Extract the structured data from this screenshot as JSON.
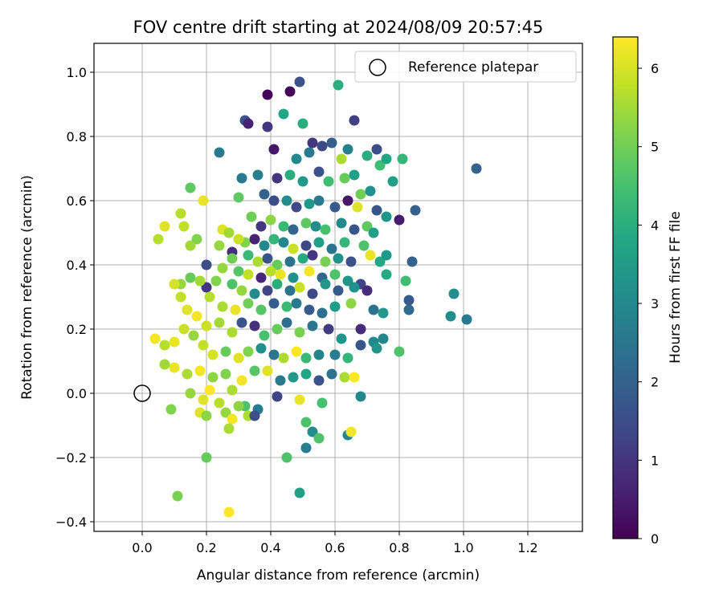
{
  "chart_data": {
    "type": "scatter",
    "title": "FOV centre drift starting at 2024/08/09 20:57:45",
    "xlabel": "Angular distance from reference (arcmin)",
    "ylabel": "Rotation from reference (arcmin)",
    "xlim": [
      -0.15,
      1.37
    ],
    "ylim": [
      -0.43,
      1.09
    ],
    "xticks": [
      "0.0",
      "0.2",
      "0.4",
      "0.6",
      "0.8",
      "1.0",
      "1.2"
    ],
    "xtick_values": [
      0.0,
      0.2,
      0.4,
      0.6,
      0.8,
      1.0,
      1.2
    ],
    "yticks": [
      "−0.4",
      "−0.2",
      "0.0",
      "0.2",
      "0.4",
      "0.6",
      "0.8",
      "1.0"
    ],
    "ytick_values": [
      -0.4,
      -0.2,
      0.0,
      0.2,
      0.4,
      0.6,
      0.8,
      1.0
    ],
    "grid": true,
    "legend": {
      "label": "Reference platepar",
      "placement": "top-right"
    },
    "reference_point": {
      "x": 0.0,
      "y": 0.0
    },
    "colorbar": {
      "label": "Hours from first FF file",
      "colormap": "viridis",
      "range": [
        0,
        6.4
      ],
      "ticks": [
        "0",
        "1",
        "2",
        "3",
        "4",
        "5",
        "6"
      ],
      "tick_values": [
        0,
        1,
        2,
        3,
        4,
        5,
        6
      ]
    },
    "points": [
      [
        0.39,
        0.93,
        0.1
      ],
      [
        0.46,
        0.94,
        0.1
      ],
      [
        0.49,
        0.97,
        1.6
      ],
      [
        0.61,
        0.96,
        4.0
      ],
      [
        0.44,
        0.87,
        3.8
      ],
      [
        0.5,
        0.84,
        4.0
      ],
      [
        0.32,
        0.85,
        1.6
      ],
      [
        0.33,
        0.84,
        0.6
      ],
      [
        0.39,
        0.83,
        1.0
      ],
      [
        0.66,
        0.85,
        1.2
      ],
      [
        0.24,
        0.75,
        2.6
      ],
      [
        0.41,
        0.76,
        0.4
      ],
      [
        0.48,
        0.73,
        3.0
      ],
      [
        0.52,
        0.75,
        2.6
      ],
      [
        0.53,
        0.78,
        1.0
      ],
      [
        0.56,
        0.77,
        1.4
      ],
      [
        0.59,
        0.78,
        1.9
      ],
      [
        0.64,
        0.76,
        2.8
      ],
      [
        0.62,
        0.73,
        5.6
      ],
      [
        0.7,
        0.74,
        4.0
      ],
      [
        0.73,
        0.76,
        1.5
      ],
      [
        0.74,
        0.71,
        4.4
      ],
      [
        0.76,
        0.73,
        3.8
      ],
      [
        0.81,
        0.73,
        4.2
      ],
      [
        0.78,
        0.66,
        3.6
      ],
      [
        0.85,
        0.57,
        2.0
      ],
      [
        1.04,
        0.7,
        2.0
      ],
      [
        0.31,
        0.67,
        2.6
      ],
      [
        0.36,
        0.68,
        2.7
      ],
      [
        0.42,
        0.67,
        1.0
      ],
      [
        0.46,
        0.68,
        4.0
      ],
      [
        0.5,
        0.66,
        3.4
      ],
      [
        0.55,
        0.69,
        1.6
      ],
      [
        0.58,
        0.66,
        4.4
      ],
      [
        0.63,
        0.67,
        4.9
      ],
      [
        0.66,
        0.68,
        3.6
      ],
      [
        0.68,
        0.62,
        5.0
      ],
      [
        0.71,
        0.63,
        3.2
      ],
      [
        0.38,
        0.62,
        2.0
      ],
      [
        0.41,
        0.6,
        1.5
      ],
      [
        0.45,
        0.6,
        3.1
      ],
      [
        0.48,
        0.58,
        1.4
      ],
      [
        0.52,
        0.59,
        3.4
      ],
      [
        0.55,
        0.6,
        2.6
      ],
      [
        0.6,
        0.58,
        1.8
      ],
      [
        0.64,
        0.6,
        0.4
      ],
      [
        0.67,
        0.58,
        6.1
      ],
      [
        0.73,
        0.57,
        1.7
      ],
      [
        0.76,
        0.55,
        3.3
      ],
      [
        0.8,
        0.54,
        0.5
      ],
      [
        0.34,
        0.55,
        5.0
      ],
      [
        0.37,
        0.52,
        1.0
      ],
      [
        0.4,
        0.54,
        5.3
      ],
      [
        0.44,
        0.52,
        4.3
      ],
      [
        0.47,
        0.51,
        2.1
      ],
      [
        0.51,
        0.53,
        4.8
      ],
      [
        0.54,
        0.52,
        3.1
      ],
      [
        0.57,
        0.51,
        4.5
      ],
      [
        0.62,
        0.53,
        3.0
      ],
      [
        0.66,
        0.51,
        1.7
      ],
      [
        0.7,
        0.52,
        4.8
      ],
      [
        0.72,
        0.5,
        3.6
      ],
      [
        0.32,
        0.47,
        5.2
      ],
      [
        0.35,
        0.48,
        0.6
      ],
      [
        0.38,
        0.46,
        3.0
      ],
      [
        0.41,
        0.48,
        4.2
      ],
      [
        0.44,
        0.47,
        2.9
      ],
      [
        0.47,
        0.45,
        5.9
      ],
      [
        0.51,
        0.46,
        1.4
      ],
      [
        0.55,
        0.47,
        3.6
      ],
      [
        0.59,
        0.45,
        2.5
      ],
      [
        0.63,
        0.47,
        4.2
      ],
      [
        0.69,
        0.46,
        4.6
      ],
      [
        0.28,
        0.44,
        0.8
      ],
      [
        0.33,
        0.43,
        4.3
      ],
      [
        0.36,
        0.41,
        5.6
      ],
      [
        0.39,
        0.42,
        1.7
      ],
      [
        0.42,
        0.4,
        4.9
      ],
      [
        0.46,
        0.41,
        2.4
      ],
      [
        0.5,
        0.42,
        3.9
      ],
      [
        0.53,
        0.43,
        1.0
      ],
      [
        0.57,
        0.41,
        5.1
      ],
      [
        0.61,
        0.42,
        3.2
      ],
      [
        0.65,
        0.41,
        1.6
      ],
      [
        0.71,
        0.43,
        6.2
      ],
      [
        0.74,
        0.41,
        3.8
      ],
      [
        0.76,
        0.43,
        3.4
      ],
      [
        0.84,
        0.41,
        2.0
      ],
      [
        0.2,
        0.4,
        1.5
      ],
      [
        0.25,
        0.39,
        5.4
      ],
      [
        0.3,
        0.38,
        4.7
      ],
      [
        0.33,
        0.37,
        5.8
      ],
      [
        0.37,
        0.36,
        0.7
      ],
      [
        0.4,
        0.38,
        5.7
      ],
      [
        0.43,
        0.37,
        6.2
      ],
      [
        0.47,
        0.36,
        3.2
      ],
      [
        0.52,
        0.38,
        6.3
      ],
      [
        0.56,
        0.36,
        2.1
      ],
      [
        0.6,
        0.37,
        4.6
      ],
      [
        0.64,
        0.35,
        3.3
      ],
      [
        0.68,
        0.34,
        1.3
      ],
      [
        0.7,
        0.32,
        0.8
      ],
      [
        0.76,
        0.37,
        3.9
      ],
      [
        0.82,
        0.35,
        4.4
      ],
      [
        0.2,
        0.33,
        1.0
      ],
      [
        0.23,
        0.35,
        5.2
      ],
      [
        0.28,
        0.34,
        4.6
      ],
      [
        0.31,
        0.32,
        5.4
      ],
      [
        0.35,
        0.31,
        3.0
      ],
      [
        0.39,
        0.32,
        1.3
      ],
      [
        0.42,
        0.34,
        4.0
      ],
      [
        0.46,
        0.32,
        2.4
      ],
      [
        0.49,
        0.33,
        5.9
      ],
      [
        0.53,
        0.31,
        1.4
      ],
      [
        0.57,
        0.34,
        3.4
      ],
      [
        0.61,
        0.32,
        1.8
      ],
      [
        0.66,
        0.33,
        3.2
      ],
      [
        0.97,
        0.31,
        3.1
      ],
      [
        0.12,
        0.34,
        5.4
      ],
      [
        0.15,
        0.36,
        4.9
      ],
      [
        0.18,
        0.35,
        5.5
      ],
      [
        0.21,
        0.3,
        5.7
      ],
      [
        0.25,
        0.27,
        5.6
      ],
      [
        0.29,
        0.26,
        6.2
      ],
      [
        0.33,
        0.28,
        5.0
      ],
      [
        0.37,
        0.26,
        4.7
      ],
      [
        0.41,
        0.28,
        1.9
      ],
      [
        0.45,
        0.27,
        4.3
      ],
      [
        0.48,
        0.28,
        2.6
      ],
      [
        0.52,
        0.26,
        1.8
      ],
      [
        0.56,
        0.25,
        2.3
      ],
      [
        0.6,
        0.27,
        3.5
      ],
      [
        0.65,
        0.28,
        5.3
      ],
      [
        0.72,
        0.26,
        2.4
      ],
      [
        0.75,
        0.25,
        3.4
      ],
      [
        0.83,
        0.26,
        2.2
      ],
      [
        0.83,
        0.29,
        1.8
      ],
      [
        0.96,
        0.24,
        3.1
      ],
      [
        1.01,
        0.23,
        2.6
      ],
      [
        0.05,
        0.48,
        5.7
      ],
      [
        0.07,
        0.52,
        6.1
      ],
      [
        0.1,
        0.34,
        6.0
      ],
      [
        0.12,
        0.3,
        5.8
      ],
      [
        0.14,
        0.26,
        6.1
      ],
      [
        0.17,
        0.24,
        6.3
      ],
      [
        0.2,
        0.21,
        5.9
      ],
      [
        0.24,
        0.22,
        5.5
      ],
      [
        0.28,
        0.19,
        5.6
      ],
      [
        0.31,
        0.22,
        1.6
      ],
      [
        0.35,
        0.21,
        0.9
      ],
      [
        0.38,
        0.18,
        4.5
      ],
      [
        0.42,
        0.2,
        4.9
      ],
      [
        0.45,
        0.22,
        2.3
      ],
      [
        0.49,
        0.19,
        5.1
      ],
      [
        0.53,
        0.21,
        2.5
      ],
      [
        0.58,
        0.2,
        1.1
      ],
      [
        0.62,
        0.17,
        3.3
      ],
      [
        0.68,
        0.2,
        0.8
      ],
      [
        0.72,
        0.16,
        3.0
      ],
      [
        0.75,
        0.17,
        2.9
      ],
      [
        0.04,
        0.17,
        6.3
      ],
      [
        0.07,
        0.15,
        5.7
      ],
      [
        0.1,
        0.16,
        6.2
      ],
      [
        0.13,
        0.2,
        5.9
      ],
      [
        0.16,
        0.18,
        5.4
      ],
      [
        0.19,
        0.15,
        5.8
      ],
      [
        0.22,
        0.12,
        6.0
      ],
      [
        0.26,
        0.13,
        4.9
      ],
      [
        0.3,
        0.11,
        6.1
      ],
      [
        0.33,
        0.13,
        5.2
      ],
      [
        0.37,
        0.14,
        3.2
      ],
      [
        0.41,
        0.12,
        2.5
      ],
      [
        0.44,
        0.11,
        5.6
      ],
      [
        0.48,
        0.13,
        6.4
      ],
      [
        0.51,
        0.11,
        4.3
      ],
      [
        0.55,
        0.12,
        2.9
      ],
      [
        0.6,
        0.12,
        2.7
      ],
      [
        0.64,
        0.11,
        4.2
      ],
      [
        0.68,
        0.15,
        1.7
      ],
      [
        0.73,
        0.14,
        3.3
      ],
      [
        0.8,
        0.13,
        4.6
      ],
      [
        0.07,
        0.09,
        5.5
      ],
      [
        0.1,
        0.08,
        6.2
      ],
      [
        0.14,
        0.06,
        5.6
      ],
      [
        0.18,
        0.07,
        6.3
      ],
      [
        0.22,
        0.05,
        5.3
      ],
      [
        0.26,
        0.06,
        5.2
      ],
      [
        0.31,
        0.04,
        6.3
      ],
      [
        0.35,
        0.07,
        4.7
      ],
      [
        0.39,
        0.07,
        6.1
      ],
      [
        0.43,
        0.04,
        2.6
      ],
      [
        0.47,
        0.05,
        3.4
      ],
      [
        0.51,
        0.06,
        3.8
      ],
      [
        0.55,
        0.04,
        1.6
      ],
      [
        0.59,
        0.06,
        2.4
      ],
      [
        0.63,
        0.05,
        5.6
      ],
      [
        0.66,
        0.05,
        6.4
      ],
      [
        0.15,
        0.0,
        5.4
      ],
      [
        0.19,
        -0.02,
        6.1
      ],
      [
        0.21,
        0.01,
        6.4
      ],
      [
        0.24,
        -0.03,
        5.7
      ],
      [
        0.28,
        0.01,
        5.6
      ],
      [
        0.32,
        -0.04,
        4.6
      ],
      [
        0.36,
        -0.05,
        2.6
      ],
      [
        0.42,
        -0.01,
        1.3
      ],
      [
        0.49,
        -0.02,
        6.2
      ],
      [
        0.56,
        -0.03,
        4.5
      ],
      [
        0.68,
        -0.01,
        3.0
      ],
      [
        0.09,
        -0.05,
        5.2
      ],
      [
        0.18,
        -0.06,
        6.1
      ],
      [
        0.2,
        -0.07,
        5.3
      ],
      [
        0.26,
        -0.06,
        5.4
      ],
      [
        0.28,
        -0.08,
        6.3
      ],
      [
        0.3,
        -0.04,
        5.3
      ],
      [
        0.33,
        -0.07,
        5.6
      ],
      [
        0.35,
        -0.07,
        1.5
      ],
      [
        0.51,
        -0.09,
        4.6
      ],
      [
        0.53,
        -0.12,
        3.1
      ],
      [
        0.55,
        -0.14,
        4.6
      ],
      [
        0.51,
        -0.17,
        2.7
      ],
      [
        0.64,
        -0.13,
        2.9
      ],
      [
        0.65,
        -0.12,
        6.3
      ],
      [
        0.2,
        -0.2,
        4.9
      ],
      [
        0.45,
        -0.2,
        4.6
      ],
      [
        0.49,
        -0.31,
        3.6
      ],
      [
        0.11,
        -0.32,
        5.1
      ],
      [
        0.27,
        -0.37,
        6.4
      ],
      [
        0.27,
        -0.11,
        5.6
      ],
      [
        0.13,
        0.52,
        5.8
      ],
      [
        0.15,
        0.46,
        5.5
      ],
      [
        0.17,
        0.48,
        5.2
      ],
      [
        0.15,
        0.64,
        4.8
      ],
      [
        0.19,
        0.6,
        6.2
      ],
      [
        0.12,
        0.56,
        5.7
      ],
      [
        0.3,
        0.61,
        4.8
      ],
      [
        0.25,
        0.51,
        6.1
      ],
      [
        0.27,
        0.5,
        5.5
      ],
      [
        0.3,
        0.48,
        5.9
      ],
      [
        0.24,
        0.46,
        5.4
      ],
      [
        0.28,
        0.42,
        5.0
      ]
    ]
  }
}
